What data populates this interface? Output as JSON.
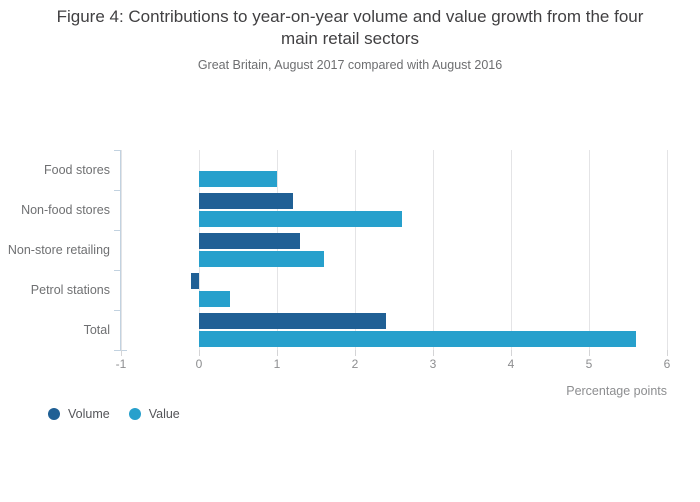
{
  "chart_data": {
    "type": "bar",
    "orientation": "horizontal",
    "title": "Figure 4: Contributions to year-on-year volume and value growth from the four main retail sectors",
    "subtitle": "Great Britain, August 2017 compared with August 2016",
    "categories": [
      "Food stores",
      "Non-food stores",
      "Non-store retailing",
      "Petrol stations",
      "Total"
    ],
    "series": [
      {
        "name": "Volume",
        "color": "#206095",
        "values": [
          0.0,
          1.2,
          1.3,
          -0.1,
          2.4
        ]
      },
      {
        "name": "Value",
        "color": "#27A0CC",
        "values": [
          1.0,
          2.6,
          1.6,
          0.4,
          5.6
        ]
      }
    ],
    "xlabel": "Percentage points",
    "xticks": [
      -1,
      0,
      1,
      2,
      3,
      4,
      5,
      6
    ],
    "xlim": [
      -1,
      6
    ],
    "grid": true,
    "legend_position": "bottom-left"
  },
  "colors": {
    "volume_bar": "#206095",
    "value_bar": "#27A0CC",
    "title_text": "#414042",
    "subtitle_text": "#6d6e70",
    "axis_text": "#8d8e90",
    "gridline": "#e4e4e6",
    "category_axis_line": "#c2d2e0"
  }
}
